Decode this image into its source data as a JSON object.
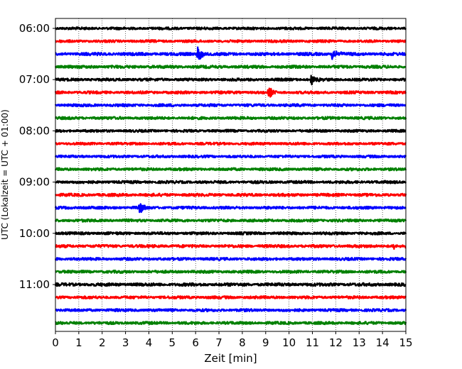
{
  "chart_data": {
    "type": "line",
    "xlabel": "Zeit  [min]",
    "ylabel": "UTC (Lokalzeit = UTC + 01:00)",
    "xlim": [
      0,
      15
    ],
    "xticks": [
      0,
      1,
      2,
      3,
      4,
      5,
      6,
      7,
      8,
      9,
      10,
      11,
      12,
      13,
      14,
      15
    ],
    "yticks": [
      "06:00",
      "07:00",
      "08:00",
      "09:00",
      "10:00",
      "11:00"
    ],
    "trace_interval_minutes": 15,
    "start_time": "06:00",
    "color_cycle": [
      "#000000",
      "#ff0000",
      "#0000ff",
      "#008000"
    ],
    "grid": "vertical dotted",
    "rows": [
      {
        "label": "06:00",
        "color": "#000000",
        "noise": 0.28,
        "events": []
      },
      {
        "label": "06:15",
        "color": "#ff0000",
        "noise": 0.28,
        "events": []
      },
      {
        "label": "06:30",
        "color": "#0000ff",
        "noise": 0.33,
        "events": [
          {
            "t": 6.1,
            "amp": 2.8
          },
          {
            "t": 11.85,
            "amp": 2.4
          }
        ]
      },
      {
        "label": "06:45",
        "color": "#008000",
        "noise": 0.32,
        "events": []
      },
      {
        "label": "07:00",
        "color": "#000000",
        "noise": 0.3,
        "events": [
          {
            "t": 10.95,
            "amp": 1.6
          }
        ]
      },
      {
        "label": "07:15",
        "color": "#ff0000",
        "noise": 0.3,
        "events": [
          {
            "t": 9.1,
            "amp": 2.2
          }
        ]
      },
      {
        "label": "07:30",
        "color": "#0000ff",
        "noise": 0.3,
        "events": []
      },
      {
        "label": "07:45",
        "color": "#008000",
        "noise": 0.3,
        "events": []
      },
      {
        "label": "08:00",
        "color": "#000000",
        "noise": 0.28,
        "events": []
      },
      {
        "label": "08:15",
        "color": "#ff0000",
        "noise": 0.28,
        "events": []
      },
      {
        "label": "08:30",
        "color": "#0000ff",
        "noise": 0.28,
        "events": []
      },
      {
        "label": "08:45",
        "color": "#008000",
        "noise": 0.3,
        "events": []
      },
      {
        "label": "09:00",
        "color": "#000000",
        "noise": 0.3,
        "events": []
      },
      {
        "label": "09:15",
        "color": "#ff0000",
        "noise": 0.32,
        "events": []
      },
      {
        "label": "09:30",
        "color": "#0000ff",
        "noise": 0.3,
        "events": [
          {
            "t": 3.6,
            "amp": 1.8
          }
        ]
      },
      {
        "label": "09:45",
        "color": "#008000",
        "noise": 0.3,
        "events": []
      },
      {
        "label": "10:00",
        "color": "#000000",
        "noise": 0.3,
        "events": []
      },
      {
        "label": "10:15",
        "color": "#ff0000",
        "noise": 0.32,
        "events": [
          {
            "t": 14.5,
            "amp": 1.0
          }
        ]
      },
      {
        "label": "10:30",
        "color": "#0000ff",
        "noise": 0.3,
        "events": []
      },
      {
        "label": "10:45",
        "color": "#008000",
        "noise": 0.3,
        "events": []
      },
      {
        "label": "11:00",
        "color": "#000000",
        "noise": 0.34,
        "events": []
      },
      {
        "label": "11:15",
        "color": "#ff0000",
        "noise": 0.3,
        "events": []
      },
      {
        "label": "11:30",
        "color": "#0000ff",
        "noise": 0.3,
        "events": []
      },
      {
        "label": "11:45",
        "color": "#008000",
        "noise": 0.3,
        "events": []
      }
    ]
  }
}
